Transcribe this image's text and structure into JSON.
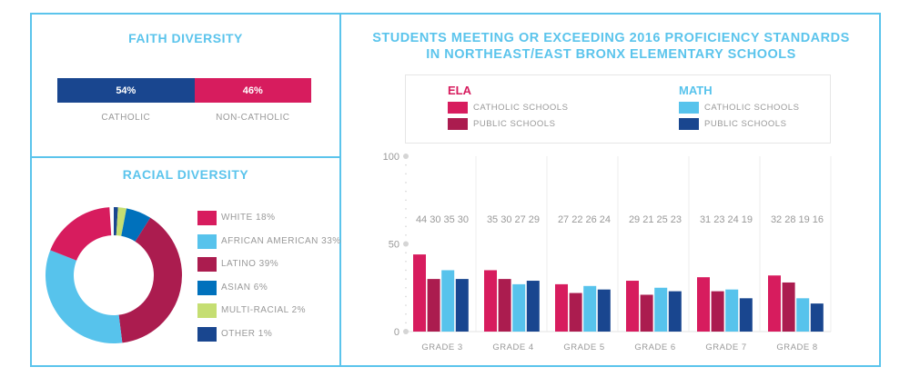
{
  "faith": {
    "title": "FAITH DIVERSITY",
    "segments": [
      {
        "label": "CATHOLIC",
        "value": 54,
        "display": "54%",
        "color": "#19468f"
      },
      {
        "label": "NON-CATHOLIC",
        "value": 46,
        "display": "46%",
        "color": "#d71c5e"
      }
    ]
  },
  "racial": {
    "title": "RACIAL DIVERSITY",
    "segments": [
      {
        "label": "WHITE 18%",
        "value": 18,
        "color": "#d71c5e"
      },
      {
        "label": "AFRICAN AMERICAN 33%",
        "value": 33,
        "color": "#57c3ec"
      },
      {
        "label": "LATINO 39%",
        "value": 39,
        "color": "#ab1c4f"
      },
      {
        "label": "ASIAN 6%",
        "value": 6,
        "color": "#0071bc"
      },
      {
        "label": "MULTI-RACIAL 2%",
        "value": 2,
        "color": "#c5de72"
      },
      {
        "label": "OTHER 1%",
        "value": 1,
        "color": "#19468f"
      }
    ],
    "clockwise_order_from_top": [
      "OTHER 1%",
      "MULTI-RACIAL 2%",
      "ASIAN 6%",
      "LATINO 39%",
      "AFRICAN AMERICAN 33%",
      "WHITE 18%"
    ]
  },
  "chart_data": {
    "type": "bar",
    "title": "STUDENTS MEETING OR EXCEEDING 2016 PROFICIENCY STANDARDS",
    "subtitle": "IN NORTHEAST/EAST BRONX ELEMENTARY SCHOOLS",
    "categories": [
      "GRADE 3",
      "GRADE 4",
      "GRADE 5",
      "GRADE 6",
      "GRADE 7",
      "GRADE 8"
    ],
    "legend": {
      "ela": "ELA",
      "math": "MATH",
      "placement": "top"
    },
    "series": [
      {
        "name": "ELA CATHOLIC SCHOOLS",
        "label": "CATHOLIC SCHOOLS",
        "color": "#d71c5e",
        "values": [
          44,
          35,
          27,
          29,
          31,
          32
        ]
      },
      {
        "name": "ELA PUBLIC SCHOOLS",
        "label": "PUBLIC SCHOOLS",
        "color": "#ab1c4f",
        "values": [
          30,
          30,
          22,
          21,
          23,
          28
        ]
      },
      {
        "name": "MATH CATHOLIC SCHOOLS",
        "label": "CATHOLIC SCHOOLS",
        "color": "#57c3ec",
        "values": [
          35,
          27,
          26,
          25,
          24,
          19
        ]
      },
      {
        "name": "MATH PUBLIC SCHOOLS",
        "label": "PUBLIC SCHOOLS",
        "color": "#19468f",
        "values": [
          30,
          29,
          24,
          23,
          19,
          16
        ]
      }
    ],
    "yticks": [
      "0",
      "50",
      "100"
    ],
    "ylim": [
      0,
      100
    ],
    "grid": false
  }
}
